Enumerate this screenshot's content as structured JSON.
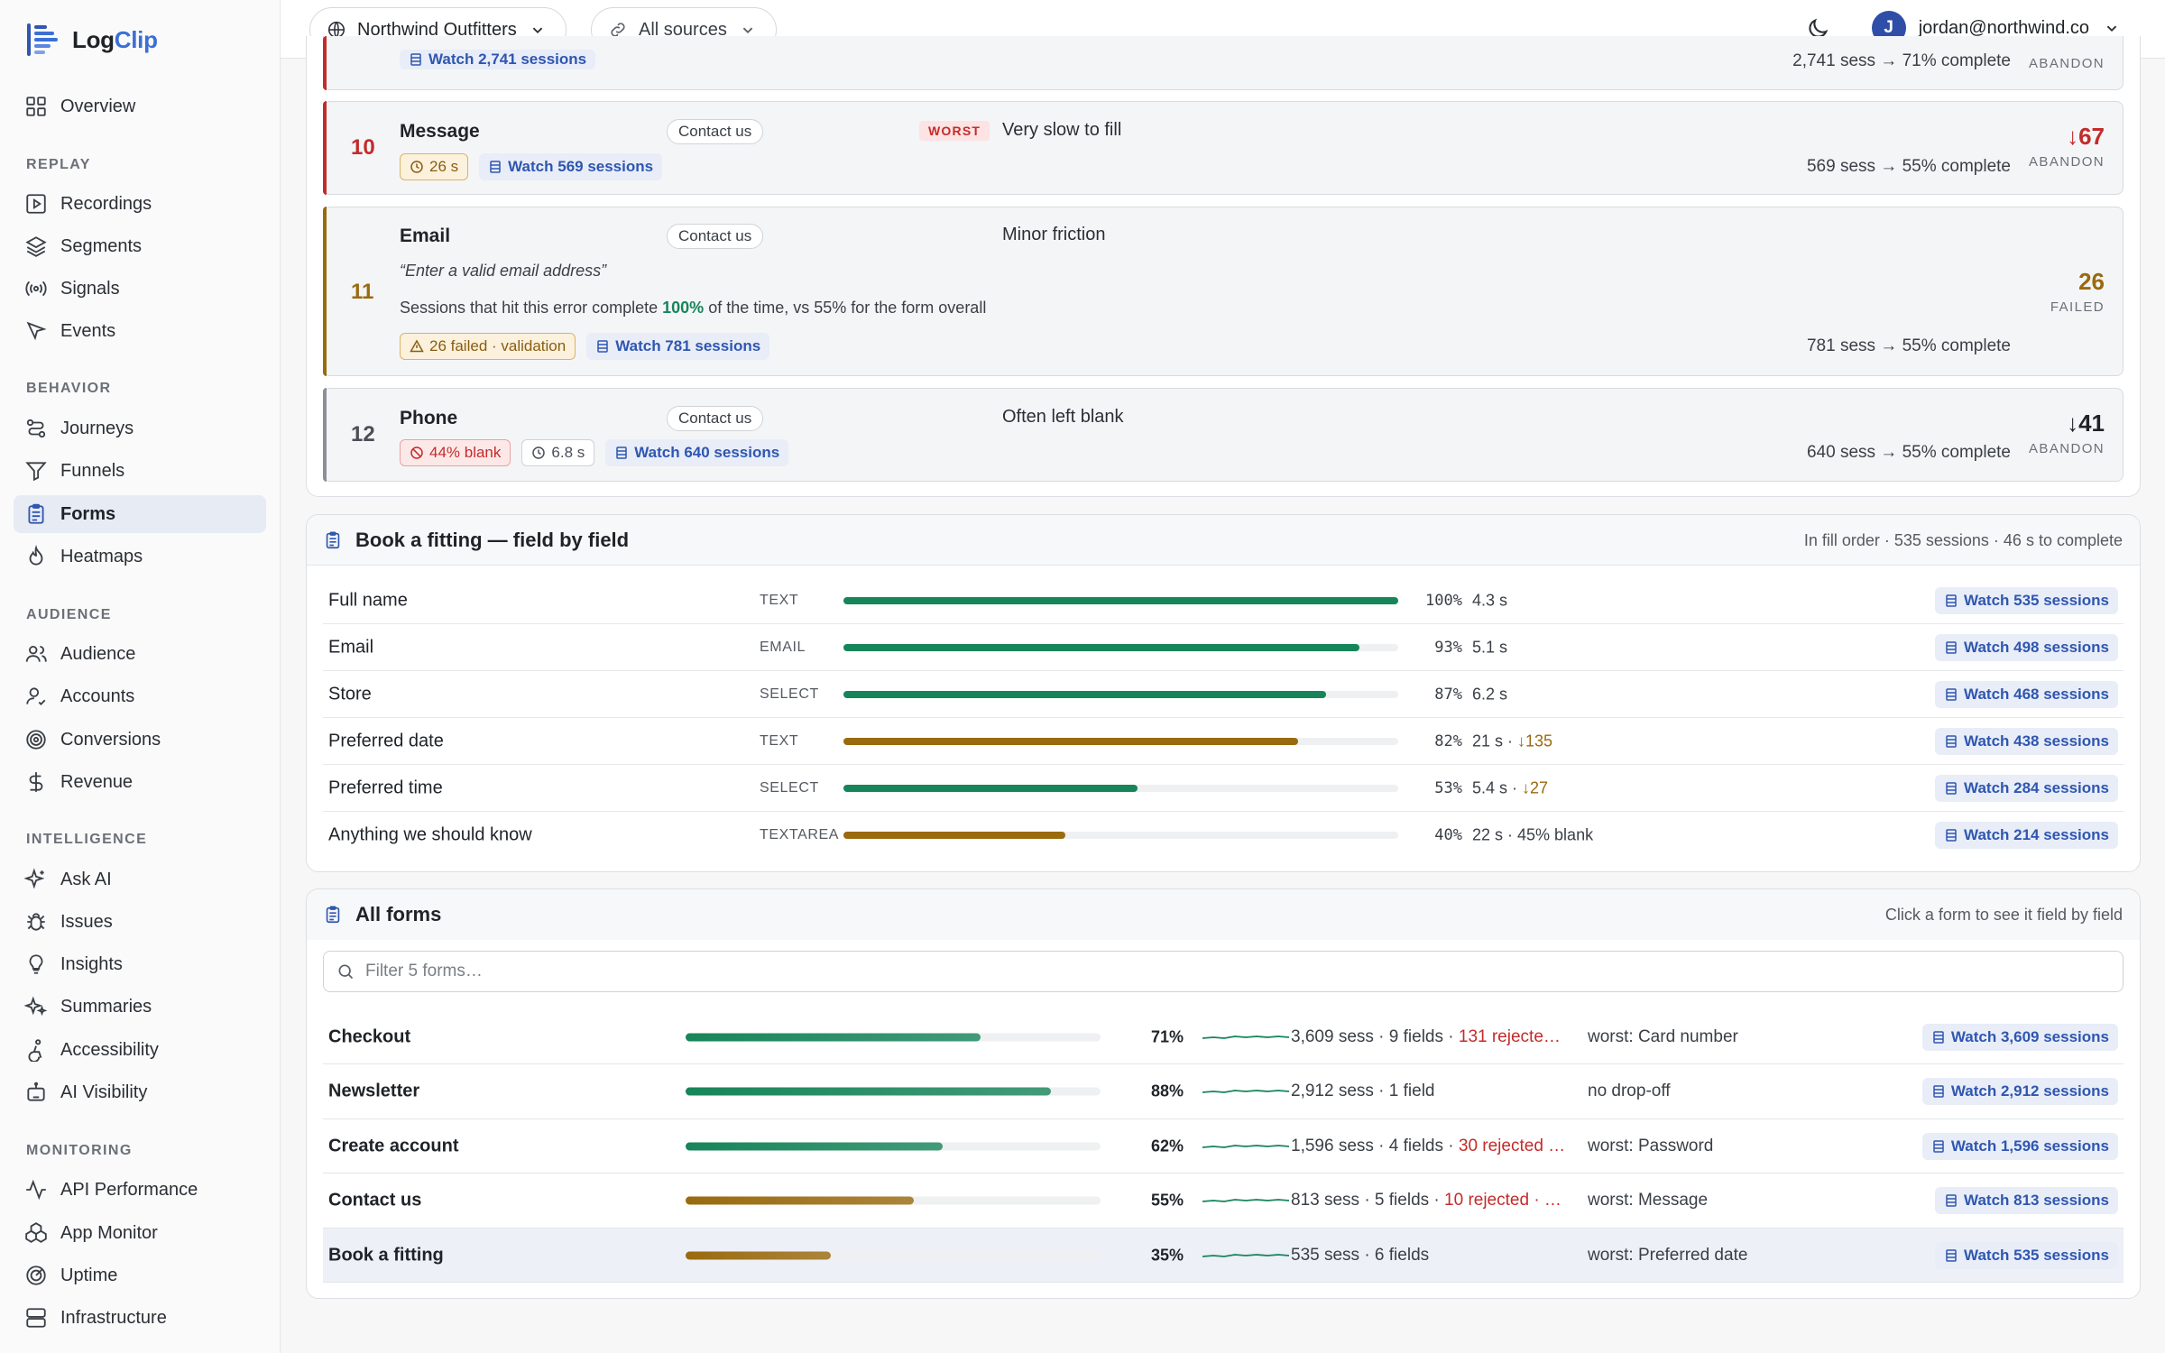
{
  "app": {
    "name_part1": "Log",
    "name_part2": "Clip"
  },
  "sidebar": {
    "overview": "Overview",
    "sections": {
      "replay": "REPLAY",
      "behavior": "BEHAVIOR",
      "audience": "AUDIENCE",
      "intelligence": "INTELLIGENCE",
      "monitoring": "MONITORING"
    },
    "items": {
      "recordings": "Recordings",
      "segments": "Segments",
      "signals": "Signals",
      "events": "Events",
      "journeys": "Journeys",
      "funnels": "Funnels",
      "forms": "Forms",
      "heatmaps": "Heatmaps",
      "audience": "Audience",
      "accounts": "Accounts",
      "conversions": "Conversions",
      "revenue": "Revenue",
      "ask_ai": "Ask AI",
      "issues": "Issues",
      "insights": "Insights",
      "summaries": "Summaries",
      "accessibility": "Accessibility",
      "ai_visibility": "AI Visibility",
      "api_performance": "API Performance",
      "app_monitor": "App Monitor",
      "uptime": "Uptime",
      "infrastructure": "Infrastructure"
    },
    "active": "forms"
  },
  "topbar": {
    "workspace": "Northwind Outfitters",
    "sources": "All sources",
    "user_initial": "J",
    "user_email": "jordan@northwind.co"
  },
  "top_fragment": {
    "watch": "Watch 2,741 sessions",
    "stat": "2,741 sess → 71% complete",
    "label": "ABANDON"
  },
  "issues": [
    {
      "rank": "10",
      "title": "Message",
      "form": "Contact us",
      "badge": "WORST",
      "note": "Very slow to fill",
      "chip_time": "26 s",
      "watch": "Watch 569 sessions",
      "stat": "569 sess → 55% complete",
      "value": "↓67",
      "label": "ABANDON",
      "color": "#c42b2b"
    },
    {
      "rank": "11",
      "title": "Email",
      "form": "Contact us",
      "note": "Minor friction",
      "quote": "“Enter a valid email address”",
      "sentence_pre": "Sessions that hit this error complete ",
      "sentence_pct": "100%",
      "sentence_post": " of the time, vs 55% for the form overall",
      "chip_failed": "26 failed · validation",
      "watch": "Watch 781 sessions",
      "stat": "781 sess → 55% complete",
      "value": "26",
      "label": "FAILED",
      "color": "#9a6a0e"
    },
    {
      "rank": "12",
      "title": "Phone",
      "form": "Contact us",
      "note": "Often left blank",
      "chip_blank": "44% blank",
      "chip_time": "6.8 s",
      "watch": "Watch 640 sessions",
      "stat": "640 sess → 55% complete",
      "value": "↓41",
      "label": "ABANDON",
      "color": "#1f2328"
    }
  ],
  "field_section": {
    "title": "Book a fitting — field by field",
    "summary": "In fill order · 535 sessions · 46 s to complete",
    "fields": [
      {
        "name": "Full name",
        "type": "TEXT",
        "pct": 100,
        "pct_label": "100%",
        "time": "4.3 s",
        "extra": "",
        "watch": "Watch 535 sessions",
        "color": "#17855a"
      },
      {
        "name": "Email",
        "type": "EMAIL",
        "pct": 93,
        "pct_label": "93%",
        "time": "5.1 s",
        "extra": "",
        "watch": "Watch 498 sessions",
        "color": "#17855a"
      },
      {
        "name": "Store",
        "type": "SELECT",
        "pct": 87,
        "pct_label": "87%",
        "time": "6.2 s",
        "extra": "",
        "watch": "Watch 468 sessions",
        "color": "#17855a"
      },
      {
        "name": "Preferred date",
        "type": "TEXT",
        "pct": 82,
        "pct_label": "82%",
        "time": "21 s · ",
        "extra": "↓135",
        "watch": "Watch 438 sessions",
        "color": "#9a6a0e"
      },
      {
        "name": "Preferred time",
        "type": "SELECT",
        "pct": 53,
        "pct_label": "53%",
        "time": "5.4 s · ",
        "extra": "↓27",
        "watch": "Watch 284 sessions",
        "color": "#17855a"
      },
      {
        "name": "Anything we should know",
        "type": "TEXTAREA",
        "pct": 40,
        "pct_label": "40%",
        "time": "22 s · 45% blank",
        "extra": "",
        "watch": "Watch 214 sessions",
        "color": "#9a6a0e"
      }
    ]
  },
  "forms_section": {
    "title": "All forms",
    "hint": "Click a form to see it field by field",
    "search_placeholder": "Filter 5 forms…",
    "forms": [
      {
        "name": "Checkout",
        "pct": 71,
        "pct_label": "71%",
        "meta": "3,609 sess · 9 fields · ",
        "rejected": "131 rejecte…",
        "worst": "worst: Card number",
        "watch": "Watch 3,609 sessions",
        "color": "#17855a"
      },
      {
        "name": "Newsletter",
        "pct": 88,
        "pct_label": "88%",
        "meta": "2,912 sess · 1 field",
        "rejected": "",
        "worst": "no drop-off",
        "watch": "Watch 2,912 sessions",
        "color": "#17855a"
      },
      {
        "name": "Create account",
        "pct": 62,
        "pct_label": "62%",
        "meta": "1,596 sess · 4 fields · ",
        "rejected": "30 rejected …",
        "worst": "worst: Password",
        "watch": "Watch 1,596 sessions",
        "color": "#17855a"
      },
      {
        "name": "Contact us",
        "pct": 55,
        "pct_label": "55%",
        "meta": "813 sess · 5 fields · ",
        "rejected": "10 rejected · …",
        "worst": "worst: Message",
        "watch": "Watch 813 sessions",
        "color": "#9a6a0e"
      },
      {
        "name": "Book a fitting",
        "pct": 35,
        "pct_label": "35%",
        "meta": "535 sess · 6 fields",
        "rejected": "",
        "worst": "worst: Preferred date",
        "watch": "Watch 535 sessions",
        "color": "#9a6a0e",
        "selected": true
      }
    ]
  }
}
